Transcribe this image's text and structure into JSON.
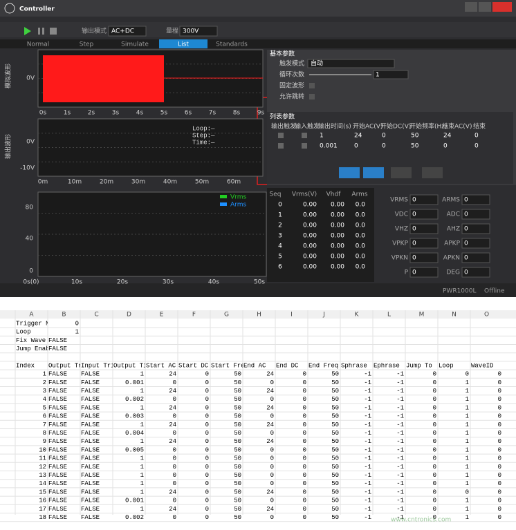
{
  "app": {
    "title": "Controller",
    "toolbar": {
      "mode_label": "输出模式",
      "mode": "AC+DC",
      "range_label": "量程",
      "range": "300V"
    },
    "tabs": [
      "Normal",
      "Step",
      "Simulate",
      "List",
      "Standards"
    ],
    "active_tab": 3,
    "sim_chart": {
      "ylabel": "模拟波形",
      "yticks": [
        "0V"
      ],
      "xticks": [
        "0s",
        "1s",
        "2s",
        "3s",
        "4s",
        "5s",
        "6s",
        "7s",
        "8s",
        "9s"
      ]
    },
    "out_chart": {
      "ylabel": "输出波形",
      "yticks": [
        "0V",
        "-10V"
      ],
      "xticks": [
        "0m",
        "10m",
        "20m",
        "30m",
        "40m",
        "50m",
        "60m"
      ],
      "info": [
        "Loop:—",
        "Step:—",
        "Time:—"
      ]
    },
    "trend_chart": {
      "yticks": [
        "80",
        "40",
        "0"
      ],
      "xticks": [
        "0s(0)",
        "10s",
        "20s",
        "30s",
        "40s",
        "50s"
      ],
      "legend": [
        {
          "name": "Vrms",
          "color": "#22cc22"
        },
        {
          "name": "Arms",
          "color": "#1e90ff"
        }
      ]
    },
    "basic": {
      "title": "基本参数",
      "fields": [
        {
          "label": "触发模式",
          "value": "自动"
        },
        {
          "label": "循环次数",
          "value": "1"
        },
        {
          "label": "固定波形"
        },
        {
          "label": "允许跳转"
        }
      ]
    },
    "list": {
      "title": "列表参数",
      "columns": [
        "输出触发",
        "输入触发",
        "输出时间(s)",
        "开始AC(V)",
        "开始DC(V)",
        "开始频率(Hz)",
        "结束AC(V)",
        "结束"
      ],
      "rows": [
        [
          1,
          24,
          0,
          50,
          24,
          0
        ],
        [
          0.001,
          0,
          0,
          50,
          0,
          0
        ]
      ]
    },
    "seq_table": {
      "columns": [
        "Seq",
        "Vrms(V)",
        "Vhdf",
        "Arms"
      ],
      "rows": [
        [
          0,
          "0.00",
          "0.00",
          "0.0"
        ],
        [
          1,
          "0.00",
          "0.00",
          "0.0"
        ],
        [
          2,
          "0.00",
          "0.00",
          "0.0"
        ],
        [
          3,
          "0.00",
          "0.00",
          "0.0"
        ],
        [
          4,
          "0.00",
          "0.00",
          "0.0"
        ],
        [
          5,
          "0.00",
          "0.00",
          "0.0"
        ],
        [
          6,
          "0.00",
          "0.00",
          "0.0"
        ]
      ]
    },
    "meters": [
      {
        "label": "VRMS",
        "value": "0"
      },
      {
        "label": "ARMS",
        "value": "0"
      },
      {
        "label": "VDC",
        "value": "0"
      },
      {
        "label": "ADC",
        "value": "0"
      },
      {
        "label": "VHZ",
        "value": "0"
      },
      {
        "label": "AHZ",
        "value": "0"
      },
      {
        "label": "VPKP",
        "value": "0"
      },
      {
        "label": "APKP",
        "value": "0"
      },
      {
        "label": "VPKN",
        "value": "0"
      },
      {
        "label": "APKN",
        "value": "0"
      },
      {
        "label": "P",
        "value": "0"
      },
      {
        "label": "DEG",
        "value": "0"
      }
    ],
    "status": [
      "PWR1000L",
      "Offline"
    ]
  },
  "sheet": {
    "columns": [
      "A",
      "B",
      "C",
      "D",
      "E",
      "F",
      "G",
      "H",
      "I",
      "J",
      "K",
      "L",
      "M",
      "N",
      "O"
    ],
    "rows": [
      [
        "Trigger M",
        0
      ],
      [
        "Loop",
        1
      ],
      [
        "Fix Wave",
        "FALSE"
      ],
      [
        "Jump Enab",
        "FALSE"
      ],
      [],
      [
        "Index",
        "Output Tr",
        "Input Tri",
        "Output Ti",
        "Start AC",
        "Start DC",
        "Start Fre",
        "End AC",
        "End DC",
        "End Freq",
        "Sphrase",
        "Ephrase",
        "Jump To",
        "Loop",
        "WaveID"
      ],
      [
        1,
        "FALSE",
        "FALSE",
        1,
        24,
        0,
        50,
        24,
        0,
        50,
        -1,
        -1,
        0,
        0,
        0
      ],
      [
        2,
        "FALSE",
        "FALSE",
        0.001,
        0,
        0,
        50,
        0,
        0,
        50,
        -1,
        -1,
        0,
        1,
        0
      ],
      [
        3,
        "FALSE",
        "FALSE",
        1,
        24,
        0,
        50,
        24,
        0,
        50,
        -1,
        -1,
        0,
        1,
        0
      ],
      [
        4,
        "FALSE",
        "FALSE",
        0.002,
        0,
        0,
        50,
        0,
        0,
        50,
        -1,
        -1,
        0,
        1,
        0
      ],
      [
        5,
        "FALSE",
        "FALSE",
        1,
        24,
        0,
        50,
        24,
        0,
        50,
        -1,
        -1,
        0,
        1,
        0
      ],
      [
        6,
        "FALSE",
        "FALSE",
        0.003,
        0,
        0,
        50,
        0,
        0,
        50,
        -1,
        -1,
        0,
        1,
        0
      ],
      [
        7,
        "FALSE",
        "FALSE",
        1,
        24,
        0,
        50,
        24,
        0,
        50,
        -1,
        -1,
        0,
        1,
        0
      ],
      [
        8,
        "FALSE",
        "FALSE",
        0.004,
        0,
        0,
        50,
        0,
        0,
        50,
        -1,
        -1,
        0,
        1,
        0
      ],
      [
        9,
        "FALSE",
        "FALSE",
        1,
        24,
        0,
        50,
        24,
        0,
        50,
        -1,
        -1,
        0,
        1,
        0
      ],
      [
        10,
        "FALSE",
        "FALSE",
        0.005,
        0,
        0,
        50,
        0,
        0,
        50,
        -1,
        -1,
        0,
        1,
        0
      ],
      [
        11,
        "FALSE",
        "FALSE",
        1,
        0,
        0,
        50,
        0,
        0,
        50,
        -1,
        -1,
        0,
        1,
        0
      ],
      [
        12,
        "FALSE",
        "FALSE",
        1,
        0,
        0,
        50,
        0,
        0,
        50,
        -1,
        -1,
        0,
        1,
        0
      ],
      [
        13,
        "FALSE",
        "FALSE",
        1,
        0,
        0,
        50,
        0,
        0,
        50,
        -1,
        -1,
        0,
        1,
        0
      ],
      [
        14,
        "FALSE",
        "FALSE",
        1,
        0,
        0,
        50,
        0,
        0,
        50,
        -1,
        -1,
        0,
        1,
        0
      ],
      [
        15,
        "FALSE",
        "FALSE",
        1,
        24,
        0,
        50,
        24,
        0,
        50,
        -1,
        -1,
        0,
        0,
        0
      ],
      [
        16,
        "FALSE",
        "FALSE",
        0.001,
        0,
        0,
        50,
        0,
        0,
        50,
        -1,
        -1,
        0,
        1,
        0
      ],
      [
        17,
        "FALSE",
        "FALSE",
        1,
        24,
        0,
        50,
        24,
        0,
        50,
        -1,
        -1,
        0,
        1,
        0
      ],
      [
        18,
        "FALSE",
        "FALSE",
        0.002,
        0,
        0,
        50,
        0,
        0,
        50,
        -1,
        -1,
        0,
        1,
        0
      ]
    ]
  },
  "watermark": "www.cntronics.com"
}
